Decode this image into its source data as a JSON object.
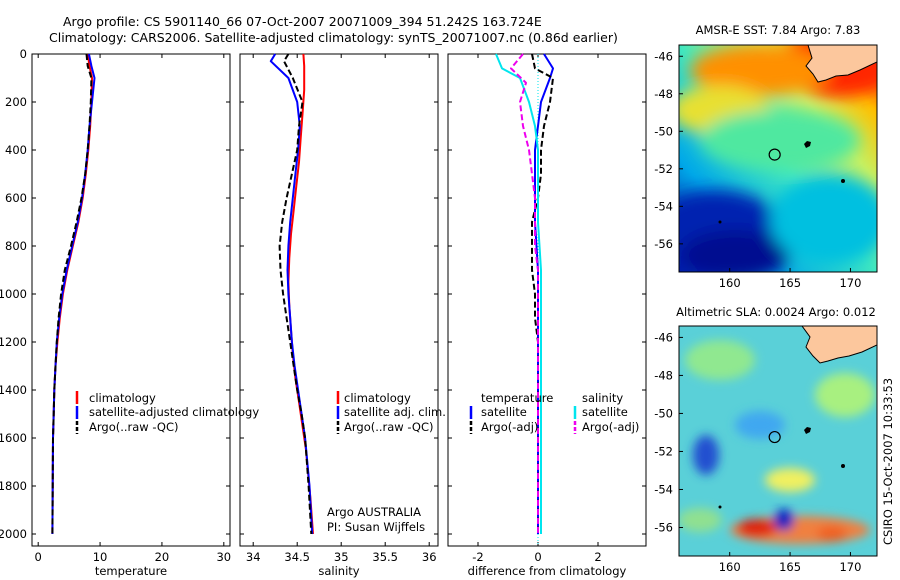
{
  "header": {
    "line1": "Argo profile: CS 5901140_66 07-Oct-2007 20071009_394 51.242S 163.724E",
    "line2": "Climatology: CARS2006. Satellite-adjusted climatology: synTS_20071007.nc (0.86d earlier)"
  },
  "colors": {
    "climatology": "#ff0000",
    "satellite": "#0000ff",
    "argo": "#000000",
    "sat_cyan": "#00e5ee",
    "argo_magenta": "#ee00ee"
  },
  "chart_data": [
    {
      "type": "line",
      "xlabel": "temperature",
      "xticks": [
        0,
        10,
        20,
        30
      ],
      "xlim": [
        -1,
        31
      ],
      "yticks": [
        0,
        200,
        400,
        600,
        800,
        1000,
        1200,
        1400,
        1600,
        1800,
        2000
      ],
      "ylim": [
        2050,
        0
      ],
      "legend_position": "center-right",
      "series": [
        {
          "name": "climatology",
          "style": "solid",
          "color": "#ff0000",
          "x": [
            8.0,
            8.3,
            8.7,
            8.6,
            8.4,
            8.1,
            7.7,
            7.2,
            6.5,
            5.6,
            4.7,
            4.0,
            3.5,
            3.1,
            2.8,
            2.6,
            2.5,
            2.4,
            2.35,
            2.3
          ],
          "y": [
            0,
            50,
            100,
            200,
            300,
            400,
            500,
            600,
            700,
            800,
            900,
            1000,
            1100,
            1200,
            1300,
            1400,
            1500,
            1600,
            1800,
            2000
          ]
        },
        {
          "name": "satellite-adjusted climatology",
          "style": "solid",
          "color": "#0000ff",
          "x": [
            8.2,
            8.6,
            9.1,
            8.7,
            8.3,
            8.0,
            7.6,
            7.1,
            6.4,
            5.5,
            4.6,
            3.9,
            3.4,
            3.0,
            2.8,
            2.6,
            2.5,
            2.4,
            2.35,
            2.3
          ],
          "y": [
            0,
            50,
            100,
            200,
            300,
            400,
            500,
            600,
            700,
            800,
            900,
            1000,
            1100,
            1200,
            1300,
            1400,
            1500,
            1600,
            1800,
            2000
          ]
        },
        {
          "name": "Argo(..raw -QC)",
          "style": "dashed",
          "color": "#000000",
          "x": [
            7.8,
            8.0,
            8.6,
            8.5,
            8.3,
            8.0,
            7.6,
            7.0,
            6.2,
            5.3,
            4.3,
            3.7,
            3.3,
            3.0,
            2.8,
            2.6,
            2.5,
            2.4,
            2.35,
            2.3
          ],
          "y": [
            0,
            50,
            100,
            200,
            300,
            400,
            500,
            600,
            700,
            800,
            900,
            1000,
            1100,
            1200,
            1300,
            1400,
            1500,
            1600,
            1800,
            2000
          ]
        }
      ]
    },
    {
      "type": "line",
      "xlabel": "salinity",
      "xticks": [
        34,
        34.5,
        35,
        35.5,
        36
      ],
      "xlim": [
        33.85,
        36.1
      ],
      "yticks": [
        0,
        200,
        400,
        600,
        800,
        1000,
        1200,
        1400,
        1600,
        1800,
        2000
      ],
      "ylim": [
        2050,
        0
      ],
      "legend_position": "center-right",
      "series": [
        {
          "name": "climatology",
          "style": "solid",
          "color": "#ff0000",
          "x": [
            34.57,
            34.58,
            34.58,
            34.56,
            34.54,
            34.52,
            34.49,
            34.46,
            34.43,
            34.41,
            34.4,
            34.41,
            34.43,
            34.45,
            34.48,
            34.52,
            34.56,
            34.6,
            34.65,
            34.68
          ],
          "y": [
            0,
            50,
            150,
            250,
            350,
            450,
            550,
            650,
            750,
            850,
            950,
            1050,
            1150,
            1250,
            1350,
            1450,
            1550,
            1650,
            1850,
            2000
          ]
        },
        {
          "name": "satellite adj. clim.",
          "style": "solid",
          "color": "#0000ff",
          "x": [
            34.25,
            34.2,
            34.4,
            34.5,
            34.53,
            34.51,
            34.48,
            34.45,
            34.42,
            34.4,
            34.39,
            34.4,
            34.42,
            34.44,
            34.47,
            34.51,
            34.55,
            34.59,
            34.64,
            34.67
          ],
          "y": [
            0,
            30,
            100,
            200,
            300,
            400,
            500,
            600,
            700,
            800,
            900,
            1000,
            1100,
            1200,
            1300,
            1400,
            1500,
            1600,
            1800,
            2000
          ]
        },
        {
          "name": "Argo(..raw -QC)",
          "style": "dashed",
          "color": "#000000",
          "x": [
            34.4,
            34.35,
            34.45,
            34.56,
            34.52,
            34.5,
            34.44,
            34.38,
            34.33,
            34.3,
            34.31,
            34.34,
            34.38,
            34.42,
            34.46,
            34.5,
            34.55,
            34.59,
            34.63,
            34.66
          ],
          "y": [
            0,
            30,
            100,
            200,
            300,
            400,
            500,
            600,
            700,
            800,
            900,
            1000,
            1100,
            1200,
            1300,
            1400,
            1500,
            1600,
            1800,
            2000
          ]
        }
      ],
      "annotation": {
        "line1": "Argo AUSTRALIA",
        "line2": "PI: Susan Wijffels"
      }
    },
    {
      "type": "line",
      "xlabel": "difference from climatology",
      "xticks": [
        -2,
        0,
        2
      ],
      "xlim": [
        -3,
        3.6
      ],
      "yticks": [
        0,
        200,
        400,
        600,
        800,
        1000,
        1200,
        1400,
        1600,
        1800,
        2000
      ],
      "ylim": [
        2050,
        0
      ],
      "legend_position": "center",
      "legend_groups": [
        "temperature",
        "salinity"
      ],
      "series": [
        {
          "name": "satellite",
          "group": "temperature",
          "style": "solid",
          "color": "#0000ff",
          "x": [
            0.2,
            0.5,
            0.4,
            0.1,
            0.0,
            -0.1,
            -0.1,
            -0.1,
            -0.1,
            -0.05,
            0.0,
            0.0,
            0.0,
            0.0,
            0.0,
            0.0,
            0.0,
            0.0,
            0.0,
            0.0
          ],
          "y": [
            0,
            60,
            100,
            200,
            300,
            400,
            500,
            600,
            700,
            800,
            900,
            1000,
            1100,
            1200,
            1300,
            1400,
            1500,
            1600,
            1800,
            2000
          ]
        },
        {
          "name": "Argo(-adj)",
          "group": "temperature",
          "style": "dashed",
          "color": "#000000",
          "x": [
            -0.2,
            -0.1,
            0.5,
            0.4,
            0.2,
            0.1,
            0.1,
            0.0,
            -0.2,
            -0.2,
            -0.2,
            -0.1,
            -0.1,
            0.0,
            0.0,
            0.0,
            0.0,
            0.0,
            0.0,
            0.0
          ],
          "y": [
            0,
            60,
            100,
            200,
            300,
            400,
            500,
            600,
            700,
            800,
            900,
            1000,
            1100,
            1200,
            1300,
            1400,
            1500,
            1600,
            1800,
            2000
          ]
        },
        {
          "name": "satellite",
          "group": "salinity",
          "style": "solid",
          "color": "#00e5ee",
          "x": [
            -1.4,
            -1.2,
            -0.6,
            -0.3,
            -0.1,
            0.0,
            0.0,
            0.0,
            0.0,
            0.05,
            0.1,
            0.1,
            0.1,
            0.1,
            0.1,
            0.1,
            0.1,
            0.1,
            0.1,
            0.1
          ],
          "y": [
            0,
            60,
            100,
            200,
            300,
            400,
            500,
            600,
            700,
            800,
            900,
            1000,
            1100,
            1200,
            1300,
            1400,
            1500,
            1600,
            1800,
            2000
          ]
        },
        {
          "name": "Argo(-adj)",
          "group": "salinity",
          "style": "dashed",
          "color": "#ee00ee",
          "x": [
            -0.5,
            -0.9,
            -0.4,
            -0.6,
            -0.5,
            -0.3,
            -0.2,
            -0.1,
            -0.1,
            -0.1,
            0.0,
            0.0,
            0.0,
            0.0,
            0.0,
            0.0,
            0.0,
            0.0,
            0.0,
            0.0
          ],
          "y": [
            0,
            60,
            120,
            200,
            300,
            400,
            500,
            600,
            700,
            800,
            900,
            1000,
            1100,
            1200,
            1300,
            1400,
            1500,
            1600,
            1800,
            2000
          ]
        }
      ]
    },
    {
      "type": "heatmap",
      "title": "AMSR-E SST: 7.84 Argo: 7.83",
      "xticks": [
        160,
        165,
        170
      ],
      "yticks": [
        -46,
        -48,
        -50,
        -52,
        -54,
        -56
      ],
      "xlim": [
        155.8,
        172.2
      ],
      "ylim": [
        -57.5,
        -45.4
      ],
      "marker": {
        "lon": 163.724,
        "lat": -51.242
      }
    },
    {
      "type": "heatmap",
      "title": "Altimetric SLA: 0.0024 Argo: 0.012",
      "xticks": [
        160,
        165,
        170
      ],
      "yticks": [
        -46,
        -48,
        -50,
        -52,
        -54,
        -56
      ],
      "xlim": [
        155.8,
        172.2
      ],
      "ylim": [
        -57.5,
        -45.4
      ],
      "marker": {
        "lon": 163.724,
        "lat": -51.242
      }
    }
  ],
  "side_stamp": "CSIRO 15-Oct-2007 10:33:53"
}
